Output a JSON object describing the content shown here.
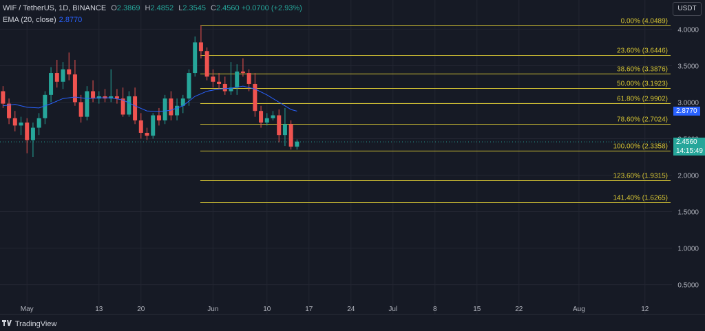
{
  "legend": {
    "symbol": "WIF / TetherUS, 1D, BINANCE",
    "open_k": "O",
    "open": "2.3869",
    "high_k": "H",
    "high": "2.4852",
    "low_k": "L",
    "low": "2.3545",
    "close_k": "C",
    "close": "2.4560",
    "change": "+0.0700 (+2.93%)",
    "ema_label": "EMA (20, close)",
    "ema_value": "2.8770"
  },
  "currency_label": "USDT",
  "brand": "TradingView",
  "price_badges": {
    "ema": "2.8770",
    "last": "2.4560",
    "countdown": "14:15:49"
  },
  "colors": {
    "up": "#26a69a",
    "down": "#ef5350",
    "fib": "#d6c534",
    "ema": "#2962ff",
    "grid": "#232632",
    "background": "#161a25"
  },
  "chart_data": {
    "type": "candlestick",
    "yaxis_ticks": [
      4.0,
      3.5,
      3.0,
      2.5,
      2.0,
      1.5,
      1.0,
      0.5
    ],
    "yaxis_tick_labels": [
      "4.0000",
      "3.5000",
      "3.0000",
      "2.5000",
      "2.0000",
      "1.5000",
      "1.0000",
      "0.5000"
    ],
    "ylim": [
      0.1,
      4.4
    ],
    "xaxis_ticks": [
      {
        "label": "May",
        "day": 0
      },
      {
        "label": "13",
        "day": 12
      },
      {
        "label": "20",
        "day": 19
      },
      {
        "label": "Jun",
        "day": 31
      },
      {
        "label": "10",
        "day": 40
      },
      {
        "label": "17",
        "day": 47
      },
      {
        "label": "24",
        "day": 54
      },
      {
        "label": "Jul",
        "day": 61
      },
      {
        "label": "8",
        "day": 68
      },
      {
        "label": "15",
        "day": 75
      },
      {
        "label": "22",
        "day": 82
      },
      {
        "label": "Aug",
        "day": 92
      },
      {
        "label": "12",
        "day": 103
      }
    ],
    "xlim_days": [
      -4.5,
      107.5
    ],
    "grid": true,
    "candles": [
      {
        "day": -4,
        "o": 3.15,
        "h": 3.22,
        "l": 2.92,
        "c": 2.98
      },
      {
        "day": -3,
        "o": 2.98,
        "h": 3.05,
        "l": 2.7,
        "c": 2.78
      },
      {
        "day": -2,
        "o": 2.78,
        "h": 2.88,
        "l": 2.6,
        "c": 2.68
      },
      {
        "day": -1,
        "o": 2.68,
        "h": 2.8,
        "l": 2.55,
        "c": 2.72
      },
      {
        "day": 0,
        "o": 2.72,
        "h": 2.78,
        "l": 2.3,
        "c": 2.48
      },
      {
        "day": 1,
        "o": 2.48,
        "h": 2.72,
        "l": 2.25,
        "c": 2.65
      },
      {
        "day": 2,
        "o": 2.65,
        "h": 2.85,
        "l": 2.55,
        "c": 2.78
      },
      {
        "day": 3,
        "o": 2.78,
        "h": 3.15,
        "l": 2.7,
        "c": 3.1
      },
      {
        "day": 4,
        "o": 3.1,
        "h": 3.48,
        "l": 3.0,
        "c": 3.4
      },
      {
        "day": 5,
        "o": 3.4,
        "h": 3.58,
        "l": 3.2,
        "c": 3.28
      },
      {
        "day": 6,
        "o": 3.28,
        "h": 3.55,
        "l": 3.18,
        "c": 3.45
      },
      {
        "day": 7,
        "o": 3.45,
        "h": 3.68,
        "l": 3.3,
        "c": 3.38
      },
      {
        "day": 8,
        "o": 3.38,
        "h": 3.58,
        "l": 2.95,
        "c": 3.0
      },
      {
        "day": 9,
        "o": 3.0,
        "h": 3.1,
        "l": 2.72,
        "c": 2.8
      },
      {
        "day": 10,
        "o": 2.8,
        "h": 3.22,
        "l": 2.75,
        "c": 3.15
      },
      {
        "day": 11,
        "o": 3.15,
        "h": 3.3,
        "l": 3.0,
        "c": 3.05
      },
      {
        "day": 12,
        "o": 3.05,
        "h": 3.15,
        "l": 2.98,
        "c": 3.08
      },
      {
        "day": 13,
        "o": 3.08,
        "h": 3.18,
        "l": 3.0,
        "c": 3.05
      },
      {
        "day": 14,
        "o": 3.05,
        "h": 3.45,
        "l": 3.0,
        "c": 3.08
      },
      {
        "day": 15,
        "o": 3.08,
        "h": 3.18,
        "l": 2.98,
        "c": 3.05
      },
      {
        "day": 16,
        "o": 3.05,
        "h": 3.2,
        "l": 2.8,
        "c": 2.83
      },
      {
        "day": 17,
        "o": 2.83,
        "h": 3.15,
        "l": 2.8,
        "c": 3.08
      },
      {
        "day": 18,
        "o": 3.08,
        "h": 3.2,
        "l": 2.7,
        "c": 2.75
      },
      {
        "day": 19,
        "o": 2.75,
        "h": 2.85,
        "l": 2.5,
        "c": 2.58
      },
      {
        "day": 20,
        "o": 2.58,
        "h": 2.65,
        "l": 2.48,
        "c": 2.54
      },
      {
        "day": 21,
        "o": 2.54,
        "h": 2.85,
        "l": 2.5,
        "c": 2.82
      },
      {
        "day": 22,
        "o": 2.82,
        "h": 2.92,
        "l": 2.68,
        "c": 2.75
      },
      {
        "day": 23,
        "o": 2.75,
        "h": 3.1,
        "l": 2.7,
        "c": 3.05
      },
      {
        "day": 24,
        "o": 3.05,
        "h": 3.15,
        "l": 2.75,
        "c": 2.82
      },
      {
        "day": 25,
        "o": 2.82,
        "h": 3.05,
        "l": 2.75,
        "c": 2.95
      },
      {
        "day": 26,
        "o": 2.95,
        "h": 3.1,
        "l": 2.85,
        "c": 3.05
      },
      {
        "day": 27,
        "o": 3.05,
        "h": 3.45,
        "l": 2.95,
        "c": 3.4
      },
      {
        "day": 28,
        "o": 3.4,
        "h": 3.9,
        "l": 3.35,
        "c": 3.82
      },
      {
        "day": 29,
        "o": 3.82,
        "h": 4.05,
        "l": 3.6,
        "c": 3.7
      },
      {
        "day": 30,
        "o": 3.7,
        "h": 3.75,
        "l": 3.3,
        "c": 3.35
      },
      {
        "day": 31,
        "o": 3.35,
        "h": 3.45,
        "l": 3.2,
        "c": 3.28
      },
      {
        "day": 32,
        "o": 3.28,
        "h": 3.4,
        "l": 3.18,
        "c": 3.25
      },
      {
        "day": 33,
        "o": 3.25,
        "h": 3.35,
        "l": 3.1,
        "c": 3.15
      },
      {
        "day": 34,
        "o": 3.15,
        "h": 3.55,
        "l": 3.1,
        "c": 3.2
      },
      {
        "day": 35,
        "o": 3.2,
        "h": 3.52,
        "l": 3.1,
        "c": 3.42
      },
      {
        "day": 36,
        "o": 3.42,
        "h": 3.6,
        "l": 3.35,
        "c": 3.4
      },
      {
        "day": 37,
        "o": 3.4,
        "h": 3.45,
        "l": 3.15,
        "c": 3.25
      },
      {
        "day": 38,
        "o": 3.25,
        "h": 3.4,
        "l": 2.8,
        "c": 2.88
      },
      {
        "day": 39,
        "o": 2.88,
        "h": 2.95,
        "l": 2.65,
        "c": 2.72
      },
      {
        "day": 40,
        "o": 2.72,
        "h": 2.85,
        "l": 2.68,
        "c": 2.78
      },
      {
        "day": 41,
        "o": 2.78,
        "h": 2.88,
        "l": 2.75,
        "c": 2.82
      },
      {
        "day": 42,
        "o": 2.82,
        "h": 2.9,
        "l": 2.45,
        "c": 2.55
      },
      {
        "day": 43,
        "o": 2.55,
        "h": 2.92,
        "l": 2.4,
        "c": 2.7
      },
      {
        "day": 44,
        "o": 2.7,
        "h": 2.75,
        "l": 2.35,
        "c": 2.39
      },
      {
        "day": 45,
        "o": 2.39,
        "h": 2.49,
        "l": 2.35,
        "c": 2.46
      }
    ],
    "ema20": [
      {
        "day": -4,
        "v": 2.95
      },
      {
        "day": -2,
        "v": 2.97
      },
      {
        "day": 0,
        "v": 2.93
      },
      {
        "day": 2,
        "v": 2.92
      },
      {
        "day": 4,
        "v": 2.98
      },
      {
        "day": 6,
        "v": 3.05
      },
      {
        "day": 8,
        "v": 3.07
      },
      {
        "day": 10,
        "v": 3.05
      },
      {
        "day": 12,
        "v": 3.06
      },
      {
        "day": 14,
        "v": 3.06
      },
      {
        "day": 16,
        "v": 3.03
      },
      {
        "day": 18,
        "v": 2.95
      },
      {
        "day": 20,
        "v": 2.88
      },
      {
        "day": 22,
        "v": 2.87
      },
      {
        "day": 24,
        "v": 2.89
      },
      {
        "day": 26,
        "v": 2.95
      },
      {
        "day": 28,
        "v": 3.08
      },
      {
        "day": 30,
        "v": 3.15
      },
      {
        "day": 32,
        "v": 3.18
      },
      {
        "day": 34,
        "v": 3.19
      },
      {
        "day": 36,
        "v": 3.22
      },
      {
        "day": 38,
        "v": 3.18
      },
      {
        "day": 40,
        "v": 3.1
      },
      {
        "day": 42,
        "v": 3.0
      },
      {
        "day": 44,
        "v": 2.9
      },
      {
        "day": 45,
        "v": 2.877
      }
    ],
    "fib_start_day": 29,
    "fib_levels": [
      {
        "label": "0.00% (4.0489)",
        "price": 4.0489
      },
      {
        "label": "23.60% (3.6446)",
        "price": 3.6446
      },
      {
        "label": "38.60% (3.3876)",
        "price": 3.3876
      },
      {
        "label": "50.00% (3.1923)",
        "price": 3.1923
      },
      {
        "label": "61.80% (2.9902)",
        "price": 2.9902
      },
      {
        "label": "78.60% (2.7024)",
        "price": 2.7024
      },
      {
        "label": "100.00% (2.3358)",
        "price": 2.3358
      },
      {
        "label": "123.60% (1.9315)",
        "price": 1.9315
      },
      {
        "label": "141.40% (1.6265)",
        "price": 1.6265
      }
    ],
    "last_price": 2.456,
    "ema_last": 2.877
  }
}
